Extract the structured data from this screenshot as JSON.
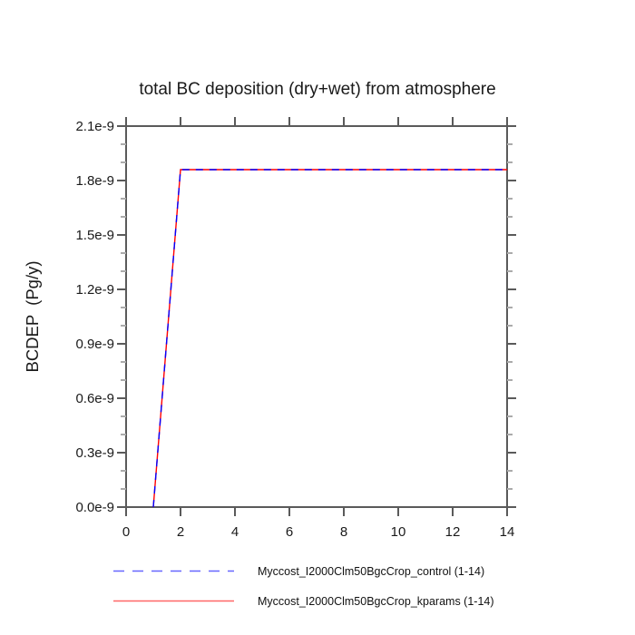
{
  "title": "total BC deposition (dry+wet) from atmosphere",
  "chart_data": {
    "type": "line",
    "title": "total BC deposition (dry+wet) from atmosphere",
    "xlabel": "",
    "ylabel": "BCDEP  (Pg/y)",
    "xlim": [
      0,
      14
    ],
    "ylim": [
      0,
      2.1e-09
    ],
    "grid": false,
    "legend_position": "bottom",
    "xticks": [
      0,
      2,
      4,
      6,
      8,
      10,
      12,
      14
    ],
    "xtick_labels": [
      "0",
      "2",
      "4",
      "6",
      "8",
      "10",
      "12",
      "14"
    ],
    "ytick_values": [
      0,
      3e-10,
      6e-10,
      9e-10,
      1.2e-09,
      1.5e-09,
      1.8e-09,
      2.1e-09
    ],
    "ytick_labels": [
      "0.0e-9",
      "0.3e-9",
      "0.6e-9",
      "0.9e-9",
      "1.2e-9",
      "1.5e-9",
      "1.8e-9",
      "2.1e-9"
    ],
    "y_minor_step": 1e-10,
    "x": [
      1,
      2,
      3,
      4,
      5,
      6,
      7,
      8,
      9,
      10,
      11,
      12,
      13,
      14
    ],
    "series": [
      {
        "name": "Myccost_I2000Clm50BgcCrop_control (1-14)",
        "color": "#0000ff",
        "line_style": "dashed",
        "values": [
          0,
          1.86e-09,
          1.86e-09,
          1.86e-09,
          1.86e-09,
          1.86e-09,
          1.86e-09,
          1.86e-09,
          1.86e-09,
          1.86e-09,
          1.86e-09,
          1.86e-09,
          1.86e-09,
          1.86e-09
        ]
      },
      {
        "name": "Myccost_I2000Clm50BgcCrop_kparams (1-14)",
        "color": "#ff0000",
        "line_style": "solid",
        "values": [
          0,
          1.86e-09,
          1.86e-09,
          1.86e-09,
          1.86e-09,
          1.86e-09,
          1.86e-09,
          1.86e-09,
          1.86e-09,
          1.86e-09,
          1.86e-09,
          1.86e-09,
          1.86e-09,
          1.86e-09
        ]
      }
    ]
  },
  "legend": {
    "items": [
      {
        "label": "Myccost_I2000Clm50BgcCrop_control (1-14)",
        "color": "#0000ff",
        "style": "dashed"
      },
      {
        "label": "Myccost_I2000Clm50BgcCrop_kparams (1-14)",
        "color": "#ff0000",
        "style": "solid"
      }
    ]
  },
  "colors": {
    "axis": "#5a5a5a",
    "minor_tick": "#ababab",
    "text": "#1a1a1a",
    "background": "#ffffff"
  }
}
